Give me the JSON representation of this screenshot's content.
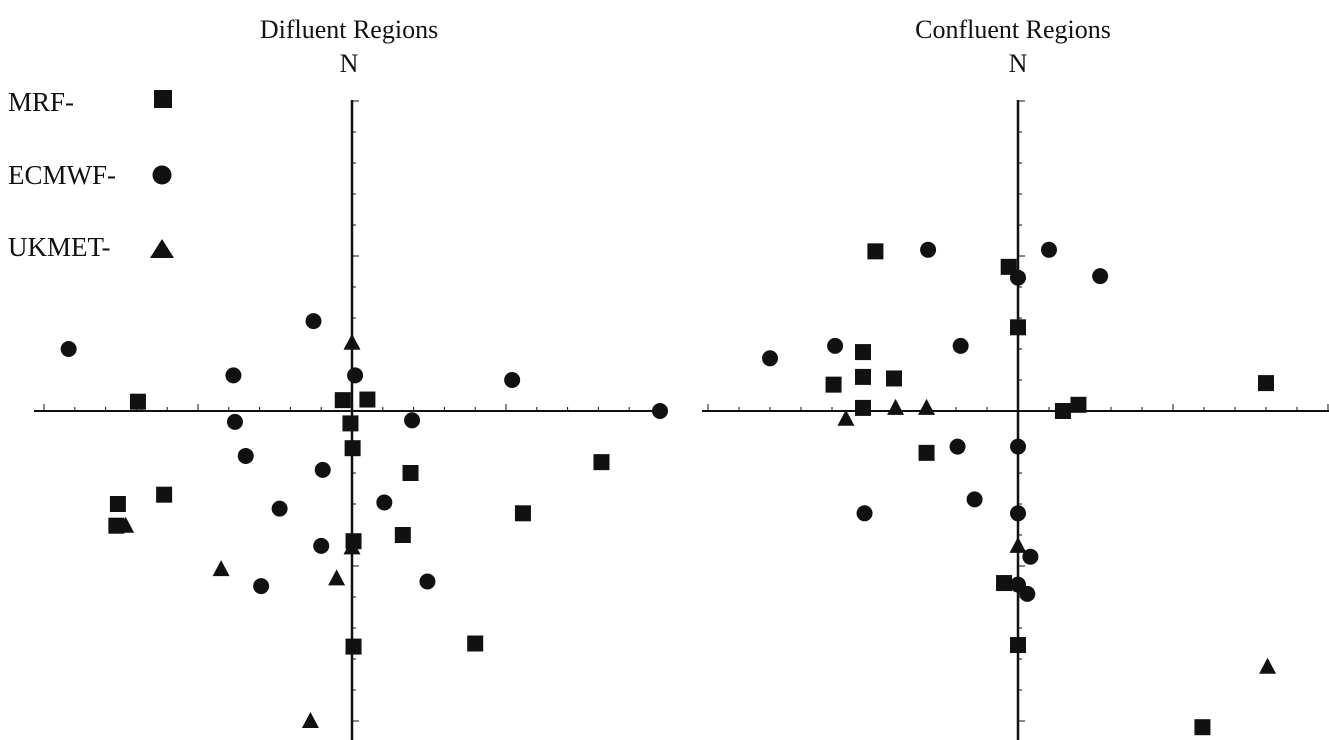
{
  "legend": [
    {
      "label": "MRF-",
      "marker": "square"
    },
    {
      "label": "ECMWF-",
      "marker": "circle"
    },
    {
      "label": "UKMET-",
      "marker": "triangle"
    }
  ],
  "colors": {
    "marker": "#111111",
    "axis": "#111111"
  },
  "chart_data": [
    {
      "type": "scatter",
      "title": "Difluent Regions",
      "north_label": "N",
      "xlim": [
        -10,
        10
      ],
      "ylim": [
        -10,
        10
      ],
      "series": [
        {
          "name": "MRF-",
          "marker": "square",
          "points": [
            [
              -6.95,
              0.3
            ],
            [
              -0.3,
              0.35
            ],
            [
              0.5,
              0.37
            ],
            [
              -0.05,
              -0.4
            ],
            [
              0.02,
              -1.2
            ],
            [
              1.9,
              -2.0
            ],
            [
              8.1,
              -1.65
            ],
            [
              -6.1,
              -2.7
            ],
            [
              -7.6,
              -3.0
            ],
            [
              -7.65,
              -3.7
            ],
            [
              1.65,
              -4.0
            ],
            [
              5.55,
              -3.3
            ],
            [
              0.05,
              -4.2
            ],
            [
              0.05,
              -7.6
            ],
            [
              4.0,
              -7.5
            ]
          ]
        },
        {
          "name": "ECMWF-",
          "marker": "circle",
          "points": [
            [
              -9.2,
              2.0
            ],
            [
              -1.25,
              2.9
            ],
            [
              -3.85,
              1.15
            ],
            [
              0.1,
              1.15
            ],
            [
              5.2,
              1.0
            ],
            [
              10.0,
              0.0
            ],
            [
              -3.8,
              -0.35
            ],
            [
              1.95,
              -0.3
            ],
            [
              -3.45,
              -1.45
            ],
            [
              -0.95,
              -1.9
            ],
            [
              -2.35,
              -3.15
            ],
            [
              1.05,
              -2.95
            ],
            [
              -1.0,
              -4.35
            ],
            [
              -2.95,
              -5.65
            ],
            [
              2.45,
              -5.5
            ]
          ]
        },
        {
          "name": "UKMET-",
          "marker": "triangle",
          "points": [
            [
              0.0,
              2.2
            ],
            [
              -7.35,
              -3.7
            ],
            [
              -4.25,
              -5.1
            ],
            [
              -0.5,
              -5.4
            ],
            [
              0.0,
              -4.4
            ],
            [
              -1.35,
              -10.0
            ]
          ]
        }
      ]
    },
    {
      "type": "scatter",
      "title": "Confluent Regions",
      "north_label": "N",
      "xlim": [
        -10,
        10
      ],
      "ylim": [
        -10,
        10
      ],
      "series": [
        {
          "name": "MRF-",
          "marker": "square",
          "points": [
            [
              -4.6,
              5.15
            ],
            [
              -0.3,
              4.65
            ],
            [
              0.0,
              2.7
            ],
            [
              -5.0,
              1.9
            ],
            [
              -5.0,
              1.1
            ],
            [
              -4.0,
              1.05
            ],
            [
              -5.95,
              0.85
            ],
            [
              -5.0,
              0.1
            ],
            [
              1.45,
              0.0
            ],
            [
              1.95,
              0.2
            ],
            [
              8.0,
              0.9
            ],
            [
              -2.95,
              -1.35
            ],
            [
              -0.45,
              -5.55
            ],
            [
              0.0,
              -7.55
            ],
            [
              5.95,
              -10.2
            ]
          ]
        },
        {
          "name": "ECMWF-",
          "marker": "circle",
          "points": [
            [
              -2.9,
              5.2
            ],
            [
              1.0,
              5.2
            ],
            [
              2.65,
              4.35
            ],
            [
              0.0,
              4.3
            ],
            [
              -8.0,
              1.7
            ],
            [
              -5.9,
              2.1
            ],
            [
              -1.85,
              2.1
            ],
            [
              -1.95,
              -1.15
            ],
            [
              0.0,
              -1.15
            ],
            [
              -1.4,
              -2.85
            ],
            [
              -4.95,
              -3.3
            ],
            [
              0.0,
              -3.3
            ],
            [
              0.4,
              -4.7
            ],
            [
              0.0,
              -5.6
            ],
            [
              0.3,
              -5.9
            ]
          ]
        },
        {
          "name": "UKMET-",
          "marker": "triangle",
          "points": [
            [
              -5.55,
              -0.25
            ],
            [
              -3.95,
              0.1
            ],
            [
              -2.95,
              0.1
            ],
            [
              0.0,
              -4.35
            ],
            [
              8.05,
              -8.25
            ]
          ]
        }
      ]
    }
  ]
}
